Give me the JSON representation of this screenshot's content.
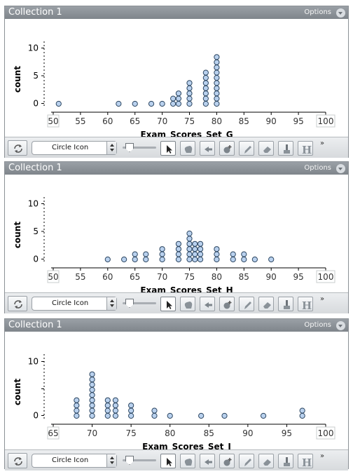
{
  "panels": [
    {
      "title": "Collection 1",
      "options_label": "Options",
      "icon_select": "Circle Icon",
      "chart_data": {
        "type": "scatter",
        "subtype": "dot-plot",
        "xlabel": "Exam_Scores_Set_G",
        "ylabel": "count",
        "xlim": [
          50,
          100
        ],
        "xticks": [
          "50",
          "55",
          "60",
          "65",
          "70",
          "75",
          "80",
          "85",
          "90",
          "95",
          "100"
        ],
        "ylim": [
          0,
          12
        ],
        "yticks": [
          "0",
          "5",
          "10"
        ],
        "grid": false,
        "points": [
          [
            51,
            1
          ],
          [
            62,
            1
          ],
          [
            65,
            1
          ],
          [
            68,
            1
          ],
          [
            70,
            1
          ],
          [
            72,
            2
          ],
          [
            73,
            3
          ],
          [
            75,
            5
          ],
          [
            78,
            7
          ],
          [
            80,
            10
          ]
        ]
      }
    },
    {
      "title": "Collection 1",
      "options_label": "Options",
      "icon_select": "Circle Icon",
      "chart_data": {
        "type": "scatter",
        "subtype": "dot-plot",
        "xlabel": "Exam_Scores_Set_H",
        "ylabel": "count",
        "xlim": [
          50,
          100
        ],
        "xticks": [
          "50",
          "55",
          "60",
          "65",
          "70",
          "75",
          "80",
          "85",
          "90",
          "95",
          "100"
        ],
        "ylim": [
          0,
          12
        ],
        "yticks": [
          "0",
          "5",
          "10"
        ],
        "grid": false,
        "points": [
          [
            60,
            1
          ],
          [
            63,
            1
          ],
          [
            65,
            2
          ],
          [
            67,
            2
          ],
          [
            70,
            3
          ],
          [
            73,
            4
          ],
          [
            75,
            6
          ],
          [
            76,
            4
          ],
          [
            77,
            4
          ],
          [
            80,
            3
          ],
          [
            83,
            2
          ],
          [
            85,
            2
          ],
          [
            87,
            1
          ],
          [
            90,
            1
          ]
        ]
      }
    },
    {
      "title": "Collection 1",
      "options_label": "Options",
      "icon_select": "Circle Icon",
      "chart_data": {
        "type": "scatter",
        "subtype": "dot-plot",
        "xlabel": "Exam_Scores_Set_I",
        "ylabel": "count",
        "xlim": [
          65,
          100
        ],
        "xticks": [
          "65",
          "70",
          "75",
          "80",
          "85",
          "90",
          "95",
          "100"
        ],
        "ylim": [
          0,
          12
        ],
        "yticks": [
          "0",
          "10"
        ],
        "grid": false,
        "points": [
          [
            68,
            4
          ],
          [
            70,
            9
          ],
          [
            72,
            4
          ],
          [
            73,
            4
          ],
          [
            75,
            3
          ],
          [
            78,
            2
          ],
          [
            80,
            1
          ],
          [
            84,
            1
          ],
          [
            87,
            1
          ],
          [
            92,
            1
          ],
          [
            97,
            2
          ]
        ]
      }
    }
  ]
}
